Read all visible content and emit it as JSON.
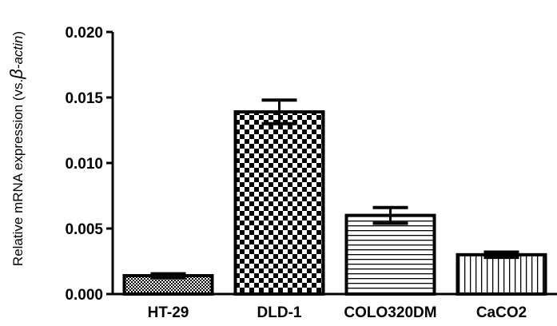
{
  "chart_data": {
    "type": "bar",
    "title": "",
    "xlabel": "",
    "ylabel_parts": [
      "Relative mRNA expression (vs.",
      "β",
      "-actin",
      ")"
    ],
    "categories": [
      "HT-29",
      "DLD-1",
      "COLO320DM",
      "CaCO2"
    ],
    "values": [
      0.0014,
      0.0139,
      0.006,
      0.003
    ],
    "error_upper": [
      0.00015,
      0.0009,
      0.0006,
      0.0002
    ],
    "error_lower": [
      0.00015,
      0.0009,
      0.0006,
      0.0002
    ],
    "fill_patterns": [
      "fine-checker",
      "checker",
      "horizontal-lines",
      "vertical-lines"
    ],
    "ylim": [
      0,
      0.02
    ],
    "yticks": [
      0.0,
      0.005,
      0.01,
      0.015,
      0.02
    ],
    "ytick_labels": [
      "0.000",
      "0.005",
      "0.010",
      "0.015",
      "0.020"
    ],
    "grid": false,
    "colors": {
      "bar_stroke": "#000000",
      "bar_fill": "#ffffff",
      "pattern": "#000000"
    }
  }
}
